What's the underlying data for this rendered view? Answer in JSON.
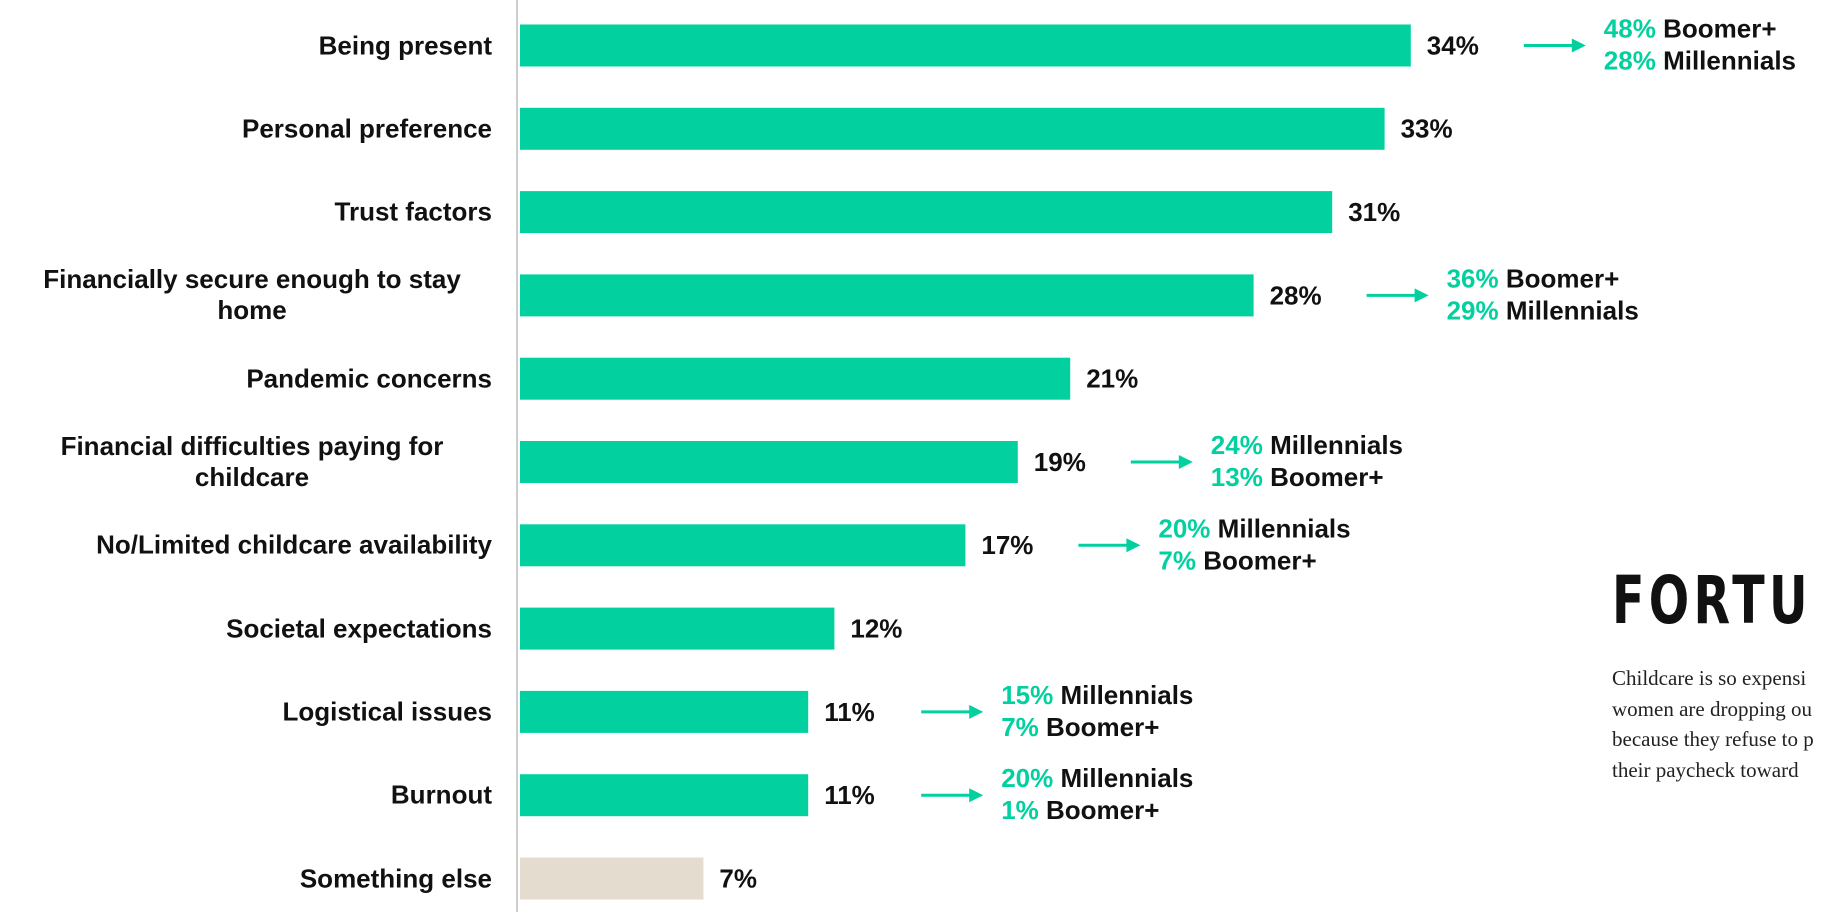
{
  "chart_data": {
    "type": "bar",
    "orientation": "horizontal",
    "categories": [
      "Being present",
      "Personal preference",
      "Trust factors",
      "Financially secure enough to stay home",
      "Pandemic concerns",
      "Financial difficulties paying for childcare",
      "No/Limited childcare availability",
      "Societal expectations",
      "Logistical issues",
      "Burnout",
      "Something else"
    ],
    "values": [
      34,
      33,
      31,
      28,
      21,
      19,
      17,
      12,
      11,
      11,
      7
    ],
    "value_labels": [
      "34%",
      "33%",
      "31%",
      "28%",
      "21%",
      "19%",
      "17%",
      "12%",
      "11%",
      "11%",
      "7%"
    ],
    "colors": [
      "#02d19f",
      "#02d19f",
      "#02d19f",
      "#02d19f",
      "#02d19f",
      "#02d19f",
      "#02d19f",
      "#02d19f",
      "#02d19f",
      "#02d19f",
      "#e4dccf"
    ],
    "breakdown_color": "#02d19f",
    "breakdowns": [
      [
        {
          "value": 48,
          "value_label": "48%",
          "group": "Boomer+"
        },
        {
          "value": 28,
          "value_label": "28%",
          "group": "Millennials"
        }
      ],
      null,
      null,
      [
        {
          "value": 36,
          "value_label": "36%",
          "group": "Boomer+"
        },
        {
          "value": 29,
          "value_label": "29%",
          "group": "Millennials"
        }
      ],
      null,
      [
        {
          "value": 24,
          "value_label": "24%",
          "group": "Millennials"
        },
        {
          "value": 13,
          "value_label": "13%",
          "group": "Boomer+"
        }
      ],
      [
        {
          "value": 20,
          "value_label": "20%",
          "group": "Millennials"
        },
        {
          "value": 7,
          "value_label": "7%",
          "group": "Boomer+"
        }
      ],
      null,
      [
        {
          "value": 15,
          "value_label": "15%",
          "group": "Millennials"
        },
        {
          "value": 7,
          "value_label": "7%",
          "group": "Boomer+"
        }
      ],
      [
        {
          "value": 20,
          "value_label": "20%",
          "group": "Millennials"
        },
        {
          "value": 1,
          "value_label": "1%",
          "group": "Boomer+"
        }
      ],
      null
    ]
  },
  "clipping": {
    "logo": "FORTU",
    "lines": [
      "Childcare is so expensi",
      "women are dropping ou",
      "because they refuse to p",
      "their paycheck toward"
    ]
  }
}
